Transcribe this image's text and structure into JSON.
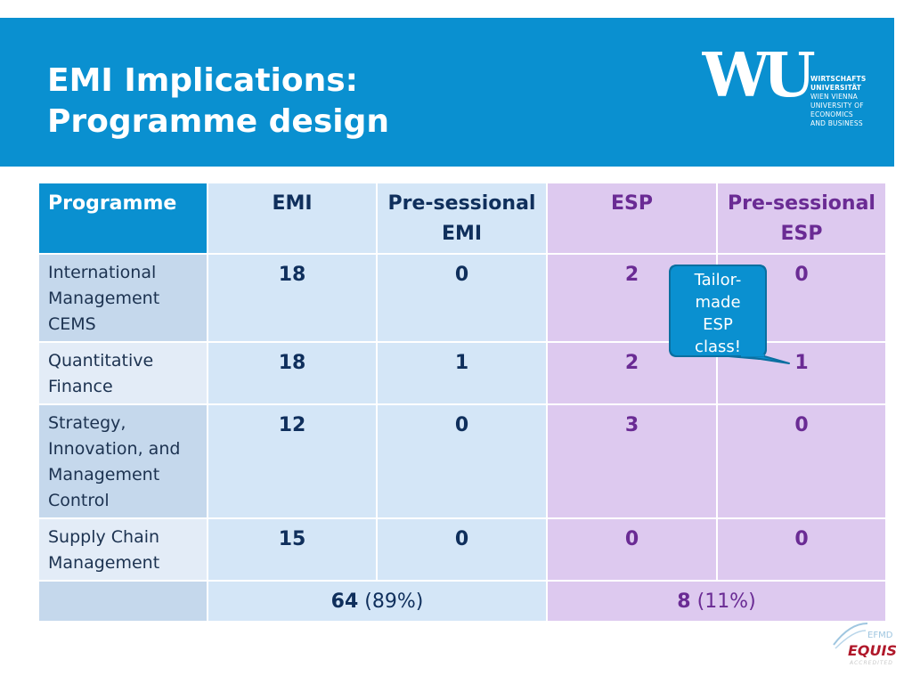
{
  "header": {
    "title_line1": "EMI Implications:",
    "title_line2": "Programme design",
    "logo_mark": "WU",
    "logo_lines": [
      "WIRTSCHAFTS",
      "UNIVERSITÄT",
      "WIEN VIENNA",
      "UNIVERSITY OF",
      "ECONOMICS",
      "AND BUSINESS"
    ]
  },
  "table": {
    "headers": {
      "programme": "Programme",
      "emi": "EMI",
      "pre_emi_1": "Pre-sessional",
      "pre_emi_2": "EMI",
      "esp": "ESP",
      "pre_esp_1": "Pre-sessional",
      "pre_esp_2": "ESP"
    },
    "rows": [
      {
        "name_lines": [
          "International",
          "Management",
          "CEMS"
        ],
        "emi": "18",
        "pre_emi": "0",
        "esp": "2",
        "pre_esp": "0"
      },
      {
        "name_lines": [
          "Quantitative",
          "Finance"
        ],
        "emi": "18",
        "pre_emi": "1",
        "esp": "2",
        "pre_esp": "1"
      },
      {
        "name_lines": [
          "Strategy,",
          "Innovation, and",
          "Management",
          "Control"
        ],
        "emi": "12",
        "pre_emi": "0",
        "esp": "3",
        "pre_esp": "0"
      },
      {
        "name_lines": [
          "Supply Chain",
          "Management"
        ],
        "emi": "15",
        "pre_emi": "0",
        "esp": "0",
        "pre_esp": "0"
      }
    ],
    "totals": {
      "emi_count": "64",
      "emi_pct": "(89%)",
      "esp_count": "8",
      "esp_pct": "(11%)"
    }
  },
  "callout": {
    "lines": [
      "Tailor-",
      "made",
      "ESP",
      "class!"
    ]
  },
  "accreditation": {
    "line1": "EFMD",
    "line2": "EQUIS",
    "line3": "ACCREDITED"
  },
  "colors": {
    "header_blue": "#0a90d0",
    "emi_cell": "#d4e6f7",
    "esp_cell": "#ddc9ef",
    "emi_text": "#0f2f5c",
    "esp_text": "#6a2b94"
  }
}
